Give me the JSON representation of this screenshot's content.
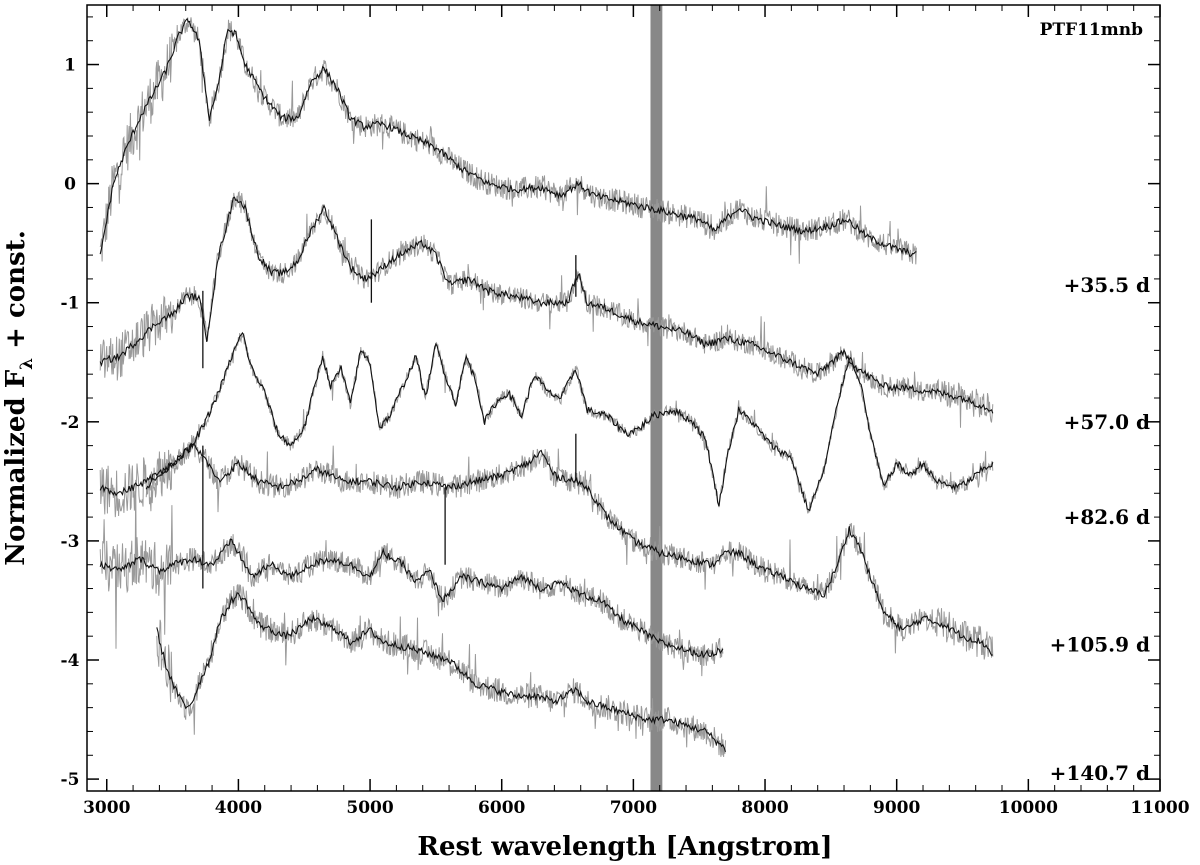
{
  "chart_data": {
    "type": "line",
    "object_label": "PTF11mnb",
    "xlabel": "Rest wavelength [Angstrom]",
    "ylabel_main": "Normalized F",
    "ylabel_subscript": "λ",
    "ylabel_suffix": " + const.",
    "xlim": [
      2850,
      11000
    ],
    "ylim": [
      -5.1,
      1.5
    ],
    "x_ticks": [
      3000,
      4000,
      5000,
      6000,
      7000,
      8000,
      9000,
      10000,
      11000
    ],
    "y_ticks": [
      1,
      0,
      -1,
      -2,
      -3,
      -4,
      -5
    ],
    "telluric_band": {
      "x_from": 7130,
      "x_to": 7220,
      "color": "#888888"
    },
    "colors": {
      "smoothed": "#111111",
      "raw": "#9a9a9a",
      "axes": "#000000"
    },
    "series": [
      {
        "epoch_label": "+35.5 d",
        "label_y": -0.85,
        "x_range": [
          2950,
          9150
        ],
        "noise": 0.1,
        "points": [
          [
            2950,
            -0.6
          ],
          [
            3050,
            0.0
          ],
          [
            3150,
            0.3
          ],
          [
            3250,
            0.55
          ],
          [
            3350,
            0.75
          ],
          [
            3450,
            0.95
          ],
          [
            3550,
            1.25
          ],
          [
            3620,
            1.38
          ],
          [
            3700,
            1.2
          ],
          [
            3780,
            0.55
          ],
          [
            3850,
            0.85
          ],
          [
            3920,
            1.3
          ],
          [
            3980,
            1.25
          ],
          [
            4050,
            1.0
          ],
          [
            4200,
            0.72
          ],
          [
            4330,
            0.55
          ],
          [
            4450,
            0.55
          ],
          [
            4550,
            0.85
          ],
          [
            4650,
            0.97
          ],
          [
            4750,
            0.8
          ],
          [
            4850,
            0.55
          ],
          [
            4950,
            0.48
          ],
          [
            5100,
            0.5
          ],
          [
            5300,
            0.4
          ],
          [
            5500,
            0.3
          ],
          [
            5700,
            0.12
          ],
          [
            5900,
            0.0
          ],
          [
            6100,
            -0.05
          ],
          [
            6300,
            -0.03
          ],
          [
            6450,
            -0.1
          ],
          [
            6580,
            0.0
          ],
          [
            6700,
            -0.1
          ],
          [
            6900,
            -0.15
          ],
          [
            7100,
            -0.2
          ],
          [
            7300,
            -0.25
          ],
          [
            7500,
            -0.3
          ],
          [
            7620,
            -0.4
          ],
          [
            7700,
            -0.3
          ],
          [
            7800,
            -0.2
          ],
          [
            7900,
            -0.28
          ],
          [
            8100,
            -0.35
          ],
          [
            8300,
            -0.4
          ],
          [
            8500,
            -0.35
          ],
          [
            8620,
            -0.3
          ],
          [
            8780,
            -0.45
          ],
          [
            9000,
            -0.55
          ],
          [
            9150,
            -0.6
          ]
        ],
        "spikes": []
      },
      {
        "epoch_label": "+57.0 d",
        "label_y": -2.0,
        "x_range": [
          2950,
          9730
        ],
        "noise": 0.09,
        "points": [
          [
            2950,
            -1.5
          ],
          [
            3100,
            -1.45
          ],
          [
            3250,
            -1.3
          ],
          [
            3400,
            -1.15
          ],
          [
            3500,
            -1.1
          ],
          [
            3600,
            -0.95
          ],
          [
            3700,
            -0.95
          ],
          [
            3760,
            -1.3
          ],
          [
            3850,
            -0.6
          ],
          [
            3970,
            -0.1
          ],
          [
            4050,
            -0.2
          ],
          [
            4150,
            -0.6
          ],
          [
            4250,
            -0.75
          ],
          [
            4350,
            -0.75
          ],
          [
            4450,
            -0.65
          ],
          [
            4550,
            -0.4
          ],
          [
            4650,
            -0.2
          ],
          [
            4750,
            -0.45
          ],
          [
            4850,
            -0.7
          ],
          [
            4950,
            -0.8
          ],
          [
            5050,
            -0.75
          ],
          [
            5150,
            -0.65
          ],
          [
            5300,
            -0.55
          ],
          [
            5400,
            -0.5
          ],
          [
            5500,
            -0.6
          ],
          [
            5600,
            -0.85
          ],
          [
            5750,
            -0.8
          ],
          [
            5900,
            -0.9
          ],
          [
            6100,
            -0.95
          ],
          [
            6300,
            -1.0
          ],
          [
            6500,
            -1.0
          ],
          [
            6580,
            -0.75
          ],
          [
            6650,
            -1.0
          ],
          [
            6800,
            -1.05
          ],
          [
            7000,
            -1.15
          ],
          [
            7200,
            -1.2
          ],
          [
            7400,
            -1.25
          ],
          [
            7550,
            -1.35
          ],
          [
            7700,
            -1.3
          ],
          [
            7900,
            -1.35
          ],
          [
            8100,
            -1.45
          ],
          [
            8300,
            -1.55
          ],
          [
            8400,
            -1.6
          ],
          [
            8500,
            -1.5
          ],
          [
            8600,
            -1.42
          ],
          [
            8700,
            -1.55
          ],
          [
            8900,
            -1.7
          ],
          [
            9100,
            -1.72
          ],
          [
            9300,
            -1.75
          ],
          [
            9500,
            -1.8
          ],
          [
            9730,
            -1.9
          ]
        ],
        "spikes": [
          [
            3730,
            -0.9,
            -1.55
          ],
          [
            5010,
            -1.0,
            -0.3
          ],
          [
            6563,
            -0.95,
            -0.6
          ]
        ]
      },
      {
        "epoch_label": "+82.6 d",
        "label_y": -2.8,
        "x_range": [
          3300,
          9730
        ],
        "noise": 0.05,
        "points": [
          [
            3300,
            -2.55
          ],
          [
            3450,
            -2.4
          ],
          [
            3550,
            -2.3
          ],
          [
            3650,
            -2.2
          ],
          [
            3750,
            -2.0
          ],
          [
            3850,
            -1.75
          ],
          [
            3950,
            -1.45
          ],
          [
            4030,
            -1.25
          ],
          [
            4100,
            -1.55
          ],
          [
            4200,
            -1.75
          ],
          [
            4300,
            -2.1
          ],
          [
            4400,
            -2.2
          ],
          [
            4500,
            -2.05
          ],
          [
            4580,
            -1.7
          ],
          [
            4640,
            -1.45
          ],
          [
            4700,
            -1.7
          ],
          [
            4780,
            -1.55
          ],
          [
            4850,
            -1.85
          ],
          [
            4930,
            -1.4
          ],
          [
            5000,
            -1.5
          ],
          [
            5070,
            -2.05
          ],
          [
            5150,
            -1.95
          ],
          [
            5250,
            -1.7
          ],
          [
            5350,
            -1.45
          ],
          [
            5420,
            -1.8
          ],
          [
            5500,
            -1.35
          ],
          [
            5570,
            -1.6
          ],
          [
            5650,
            -1.85
          ],
          [
            5730,
            -1.45
          ],
          [
            5800,
            -1.65
          ],
          [
            5870,
            -2.0
          ],
          [
            5950,
            -1.85
          ],
          [
            6050,
            -1.75
          ],
          [
            6150,
            -1.95
          ],
          [
            6250,
            -1.6
          ],
          [
            6350,
            -1.75
          ],
          [
            6450,
            -1.8
          ],
          [
            6563,
            -1.55
          ],
          [
            6650,
            -1.9
          ],
          [
            6800,
            -1.95
          ],
          [
            6950,
            -2.1
          ],
          [
            7050,
            -2.05
          ],
          [
            7150,
            -1.95
          ],
          [
            7300,
            -1.9
          ],
          [
            7450,
            -2.0
          ],
          [
            7550,
            -2.15
          ],
          [
            7650,
            -2.7
          ],
          [
            7720,
            -2.25
          ],
          [
            7800,
            -1.9
          ],
          [
            7900,
            -2.0
          ],
          [
            8050,
            -2.2
          ],
          [
            8200,
            -2.3
          ],
          [
            8330,
            -2.75
          ],
          [
            8450,
            -2.4
          ],
          [
            8550,
            -1.85
          ],
          [
            8640,
            -1.45
          ],
          [
            8720,
            -1.65
          ],
          [
            8800,
            -2.1
          ],
          [
            8900,
            -2.55
          ],
          [
            9000,
            -2.35
          ],
          [
            9100,
            -2.45
          ],
          [
            9200,
            -2.35
          ],
          [
            9300,
            -2.5
          ],
          [
            9450,
            -2.55
          ],
          [
            9550,
            -2.5
          ],
          [
            9650,
            -2.4
          ],
          [
            9730,
            -2.35
          ]
        ],
        "spikes": []
      },
      {
        "epoch_label": "+105.9 d",
        "label_y": -3.87,
        "x_range": [
          2950,
          9730
        ],
        "noise": 0.1,
        "points": [
          [
            2950,
            -2.55
          ],
          [
            3100,
            -2.6
          ],
          [
            3300,
            -2.5
          ],
          [
            3500,
            -2.35
          ],
          [
            3650,
            -2.2
          ],
          [
            3740,
            -2.3
          ],
          [
            3850,
            -2.5
          ],
          [
            4000,
            -2.35
          ],
          [
            4150,
            -2.5
          ],
          [
            4300,
            -2.55
          ],
          [
            4450,
            -2.5
          ],
          [
            4600,
            -2.4
          ],
          [
            4800,
            -2.5
          ],
          [
            5000,
            -2.5
          ],
          [
            5200,
            -2.55
          ],
          [
            5400,
            -2.5
          ],
          [
            5600,
            -2.55
          ],
          [
            5800,
            -2.5
          ],
          [
            6000,
            -2.45
          ],
          [
            6200,
            -2.35
          ],
          [
            6300,
            -2.25
          ],
          [
            6400,
            -2.45
          ],
          [
            6563,
            -2.5
          ],
          [
            6650,
            -2.55
          ],
          [
            6800,
            -2.8
          ],
          [
            7000,
            -3.0
          ],
          [
            7200,
            -3.1
          ],
          [
            7400,
            -3.15
          ],
          [
            7600,
            -3.2
          ],
          [
            7700,
            -3.1
          ],
          [
            7800,
            -3.1
          ],
          [
            8000,
            -3.25
          ],
          [
            8150,
            -3.3
          ],
          [
            8300,
            -3.4
          ],
          [
            8450,
            -3.45
          ],
          [
            8550,
            -3.2
          ],
          [
            8640,
            -2.9
          ],
          [
            8720,
            -3.05
          ],
          [
            8800,
            -3.3
          ],
          [
            8900,
            -3.6
          ],
          [
            9050,
            -3.75
          ],
          [
            9200,
            -3.65
          ],
          [
            9350,
            -3.7
          ],
          [
            9500,
            -3.8
          ],
          [
            9650,
            -3.85
          ],
          [
            9730,
            -3.95
          ]
        ],
        "spikes": [
          [
            3730,
            -2.2,
            -3.4
          ],
          [
            5570,
            -2.55,
            -3.2
          ],
          [
            6563,
            -2.5,
            -2.1
          ]
        ]
      },
      {
        "epoch_label": "+140.7 d",
        "label_y": -4.95,
        "x_range": [
          2950,
          7680
        ],
        "noise": 0.1,
        "points": [
          [
            2950,
            -3.2
          ],
          [
            3100,
            -3.25
          ],
          [
            3250,
            -3.15
          ],
          [
            3400,
            -3.25
          ],
          [
            3500,
            -3.2
          ],
          [
            3650,
            -3.15
          ],
          [
            3800,
            -3.2
          ],
          [
            3950,
            -3.0
          ],
          [
            4100,
            -3.3
          ],
          [
            4250,
            -3.2
          ],
          [
            4400,
            -3.3
          ],
          [
            4550,
            -3.2
          ],
          [
            4700,
            -3.15
          ],
          [
            4850,
            -3.2
          ],
          [
            5000,
            -3.3
          ],
          [
            5100,
            -3.1
          ],
          [
            5250,
            -3.2
          ],
          [
            5350,
            -3.35
          ],
          [
            5450,
            -3.25
          ],
          [
            5550,
            -3.5
          ],
          [
            5700,
            -3.3
          ],
          [
            5850,
            -3.35
          ],
          [
            6000,
            -3.4
          ],
          [
            6150,
            -3.3
          ],
          [
            6300,
            -3.4
          ],
          [
            6450,
            -3.35
          ],
          [
            6600,
            -3.45
          ],
          [
            6750,
            -3.5
          ],
          [
            6900,
            -3.65
          ],
          [
            7050,
            -3.75
          ],
          [
            7200,
            -3.85
          ],
          [
            7350,
            -3.9
          ],
          [
            7500,
            -3.95
          ],
          [
            7600,
            -3.95
          ],
          [
            7680,
            -3.9
          ]
        ],
        "spikes": []
      },
      {
        "epoch_label": "",
        "label_y": null,
        "x_range": [
          3380,
          7700
        ],
        "noise": 0.11,
        "points": [
          [
            3380,
            -3.75
          ],
          [
            3450,
            -4.05
          ],
          [
            3520,
            -4.25
          ],
          [
            3600,
            -4.4
          ],
          [
            3650,
            -4.35
          ],
          [
            3700,
            -4.2
          ],
          [
            3780,
            -4.0
          ],
          [
            3850,
            -3.7
          ],
          [
            3950,
            -3.5
          ],
          [
            4000,
            -3.45
          ],
          [
            4050,
            -3.5
          ],
          [
            4150,
            -3.7
          ],
          [
            4250,
            -3.75
          ],
          [
            4350,
            -3.8
          ],
          [
            4450,
            -3.75
          ],
          [
            4550,
            -3.65
          ],
          [
            4650,
            -3.7
          ],
          [
            4750,
            -3.75
          ],
          [
            4850,
            -3.85
          ],
          [
            5000,
            -3.75
          ],
          [
            5100,
            -3.85
          ],
          [
            5300,
            -3.9
          ],
          [
            5450,
            -3.95
          ],
          [
            5600,
            -4.0
          ],
          [
            5700,
            -4.1
          ],
          [
            5800,
            -4.2
          ],
          [
            5950,
            -4.25
          ],
          [
            6100,
            -4.3
          ],
          [
            6250,
            -4.3
          ],
          [
            6400,
            -4.35
          ],
          [
            6563,
            -4.25
          ],
          [
            6650,
            -4.35
          ],
          [
            6800,
            -4.4
          ],
          [
            6950,
            -4.45
          ],
          [
            7100,
            -4.5
          ],
          [
            7250,
            -4.5
          ],
          [
            7400,
            -4.55
          ],
          [
            7550,
            -4.6
          ],
          [
            7700,
            -4.75
          ]
        ],
        "spikes": []
      }
    ]
  }
}
